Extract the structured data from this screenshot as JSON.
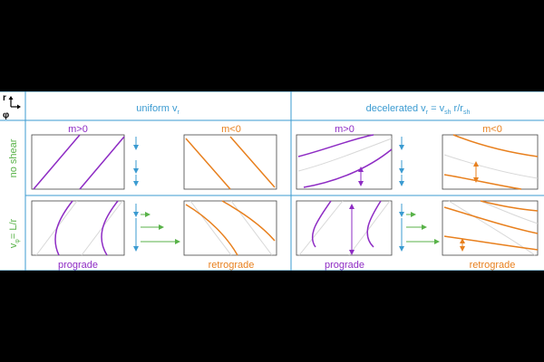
{
  "axes_glyph": {
    "r": "r",
    "phi": "φ"
  },
  "columns": {
    "uniform": {
      "prefix": "uniform v",
      "sub": "r"
    },
    "decelerated": {
      "prefix": "decelerated v",
      "sub1": "r",
      "eq": " = v",
      "sub2": "sh",
      "mid": " r/r",
      "sub3": "sh"
    }
  },
  "rows": {
    "no_shear": "no shear",
    "shear_v": "v",
    "shear_sub": "φ",
    "shear_eq": "= L/r"
  },
  "labels": {
    "m_pos": "m>0",
    "m_neg": "m<0",
    "prograde": "prograde",
    "retrograde": "retrograde"
  },
  "colors": {
    "purple": "#8e2cc4",
    "orange": "#e8801e",
    "blue": "#3b9bd1",
    "green": "#58b248",
    "ghost": "#d8d8d8",
    "frame": "#444444"
  }
}
